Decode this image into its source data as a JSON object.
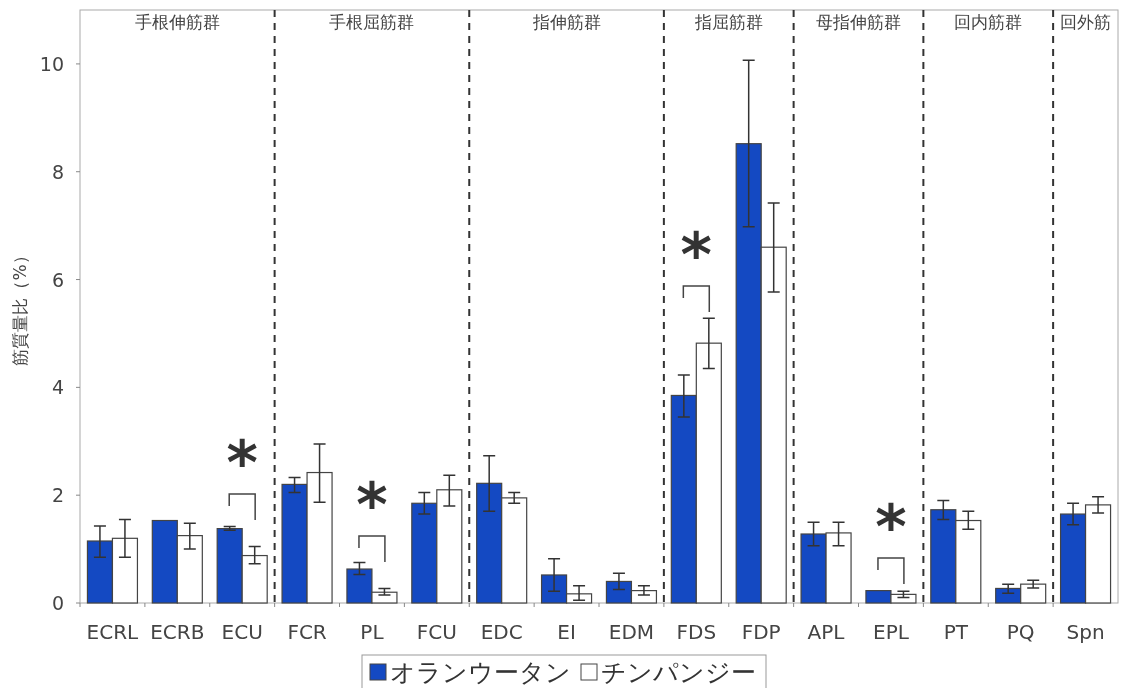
{
  "chart_data": {
    "type": "bar",
    "ylabel": "筋質量比（%）",
    "categories": [
      "ECRL",
      "ECRB",
      "ECU",
      "FCR",
      "PL",
      "FCU",
      "EDC",
      "EI",
      "EDM",
      "FDS",
      "FDP",
      "APL",
      "EPL",
      "PT",
      "PQ",
      "Spn"
    ],
    "series": [
      {
        "name": "オランウータン",
        "color": "#1449c2",
        "values": [
          1.15,
          1.53,
          1.38,
          2.2,
          0.63,
          1.85,
          2.22,
          0.52,
          0.4,
          3.85,
          8.52,
          1.28,
          0.23,
          1.73,
          0.27,
          1.65
        ],
        "errors": [
          [
            0.85,
            1.43
          ],
          null,
          [
            1.35,
            1.42
          ],
          [
            2.05,
            2.33
          ],
          [
            0.53,
            0.75
          ],
          [
            1.65,
            2.05
          ],
          [
            1.7,
            2.73
          ],
          [
            0.22,
            0.82
          ],
          [
            0.25,
            0.55
          ],
          [
            3.45,
            4.23
          ],
          [
            6.98,
            10.07
          ],
          [
            1.06,
            1.5
          ],
          null,
          [
            1.55,
            1.9
          ],
          [
            0.18,
            0.35
          ],
          [
            1.45,
            1.85
          ]
        ]
      },
      {
        "name": "チンパンジー",
        "color": "#ffffff",
        "values": [
          1.2,
          1.25,
          0.88,
          2.42,
          0.2,
          2.1,
          1.95,
          0.17,
          0.23,
          4.82,
          6.6,
          1.3,
          0.16,
          1.53,
          0.35,
          1.82
        ],
        "errors": [
          [
            0.85,
            1.55
          ],
          [
            1.0,
            1.48
          ],
          [
            0.73,
            1.05
          ],
          [
            1.87,
            2.95
          ],
          [
            0.15,
            0.27
          ],
          [
            1.8,
            2.37
          ],
          [
            1.85,
            2.05
          ],
          [
            0.05,
            0.32
          ],
          [
            0.15,
            0.32
          ],
          [
            4.35,
            5.28
          ],
          [
            5.77,
            7.42
          ],
          [
            1.06,
            1.5
          ],
          [
            0.1,
            0.22
          ],
          [
            1.37,
            1.7
          ],
          [
            0.28,
            0.42
          ],
          [
            1.67,
            1.97
          ]
        ]
      }
    ],
    "ylim": [
      0,
      11
    ],
    "yticks": [
      0,
      2,
      4,
      6,
      8,
      10
    ],
    "grid": false,
    "legend": "bottom",
    "annotations": [
      "手根伸筋群",
      "手根屈筋群",
      "指伸筋群",
      "指屈筋群",
      "母指伸筋群",
      "回内筋群",
      "回外筋",
      "*",
      "*",
      "*",
      "*"
    ]
  }
}
